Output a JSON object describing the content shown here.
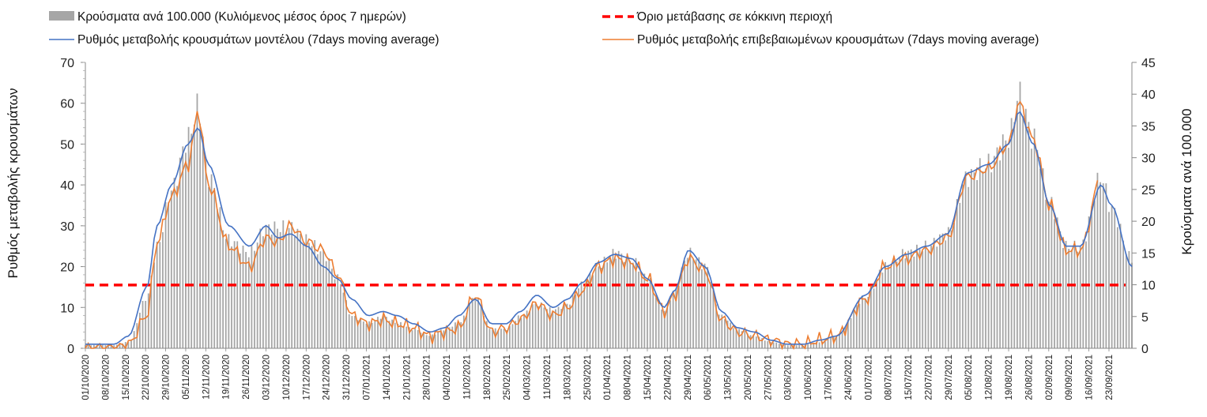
{
  "chart_data": {
    "type": "bar+line",
    "legend": {
      "bars": "Κρούσματα ανά 100.000 (Κυλιόμενος μέσος όρος 7 ημερών)",
      "threshold": "Όριο μετάβασης σε κόκκινη περιοχή",
      "model": "Ρυθμός μεταβολής κρουσμάτων μοντέλου (7days moving average)",
      "confirmed": "Ρυθμός μεταβολής επιβεβαιωμένων κρουσμάτων (7days moving average)"
    },
    "ylabel_left": "Ρυθμός μεταβολής κρουσμάτων",
    "ylabel_right": "Κρούσματα ανά 100.000",
    "ylim_left": [
      0,
      70
    ],
    "yticks_left": [
      0,
      10,
      20,
      30,
      40,
      50,
      60,
      70
    ],
    "ylim_right": [
      0,
      45
    ],
    "yticks_right": [
      0,
      5,
      10,
      15,
      20,
      25,
      30,
      35,
      40,
      45
    ],
    "threshold_value": 15.5,
    "day_count": 366,
    "date_labels": [
      "01/10/2020",
      "08/10/2020",
      "15/10/2020",
      "22/10/2020",
      "29/10/2020",
      "05/11/2020",
      "12/11/2020",
      "19/11/2020",
      "26/11/2020",
      "03/12/2020",
      "10/12/2020",
      "17/12/2020",
      "24/12/2020",
      "31/12/2020",
      "07/01/2021",
      "14/01/2021",
      "21/01/2021",
      "28/01/2021",
      "04/02/2021",
      "11/02/2021",
      "18/02/2021",
      "25/02/2021",
      "04/03/2021",
      "11/03/2021",
      "18/03/2021",
      "25/03/2021",
      "01/04/2021",
      "08/04/2021",
      "15/04/2021",
      "22/04/2021",
      "29/04/2021",
      "06/05/2021",
      "13/05/2021",
      "20/05/2021",
      "27/05/2021",
      "03/06/2021",
      "10/06/2021",
      "17/06/2021",
      "24/06/2021",
      "01/07/2021",
      "08/07/2021",
      "15/07/2021",
      "22/07/2021",
      "29/07/2021",
      "05/08/2021",
      "12/08/2021",
      "19/08/2021",
      "26/08/2021",
      "02/09/2021",
      "09/09/2021",
      "16/09/2021",
      "23/09/2021"
    ],
    "model_keypoints": [
      [
        0,
        1
      ],
      [
        14,
        1
      ],
      [
        21,
        3
      ],
      [
        30,
        15
      ],
      [
        35,
        30
      ],
      [
        42,
        40
      ],
      [
        50,
        50
      ],
      [
        55,
        54
      ],
      [
        60,
        45
      ],
      [
        70,
        30
      ],
      [
        80,
        25
      ],
      [
        88,
        30
      ],
      [
        94,
        27
      ],
      [
        100,
        28
      ],
      [
        108,
        25
      ],
      [
        116,
        20
      ],
      [
        123,
        17
      ],
      [
        130,
        12
      ],
      [
        138,
        8
      ],
      [
        145,
        9
      ],
      [
        152,
        8
      ],
      [
        160,
        6
      ],
      [
        168,
        4
      ],
      [
        175,
        5
      ],
      [
        182,
        8
      ],
      [
        190,
        12
      ],
      [
        198,
        6
      ],
      [
        205,
        6
      ],
      [
        212,
        9
      ],
      [
        220,
        13
      ],
      [
        228,
        10
      ],
      [
        235,
        12
      ],
      [
        242,
        16
      ],
      [
        250,
        21
      ],
      [
        258,
        23
      ],
      [
        266,
        22
      ],
      [
        274,
        17
      ],
      [
        282,
        10
      ],
      [
        287,
        14
      ],
      [
        294,
        24
      ],
      [
        302,
        20
      ],
      [
        310,
        9
      ],
      [
        318,
        5
      ],
      [
        326,
        4
      ],
      [
        334,
        2
      ],
      [
        342,
        1
      ],
      [
        350,
        1
      ],
      [
        358,
        2
      ],
      [
        366,
        3
      ],
      [
        380,
        13
      ],
      [
        390,
        20
      ],
      [
        400,
        23
      ],
      [
        410,
        25
      ],
      [
        420,
        28
      ],
      [
        430,
        43
      ],
      [
        440,
        45
      ],
      [
        450,
        50
      ],
      [
        455,
        58
      ],
      [
        462,
        50
      ],
      [
        470,
        35
      ],
      [
        478,
        25
      ],
      [
        485,
        25
      ],
      [
        495,
        40
      ],
      [
        500,
        35
      ],
      [
        510,
        20
      ]
    ],
    "confirmed_keypoints": [
      [
        0,
        0
      ],
      [
        14,
        0
      ],
      [
        21,
        1
      ],
      [
        30,
        8
      ],
      [
        35,
        26
      ],
      [
        42,
        37
      ],
      [
        50,
        45
      ],
      [
        55,
        58
      ],
      [
        60,
        40
      ],
      [
        70,
        25
      ],
      [
        80,
        20
      ],
      [
        88,
        27
      ],
      [
        94,
        26
      ],
      [
        100,
        30
      ],
      [
        108,
        26
      ],
      [
        116,
        24
      ],
      [
        123,
        18
      ],
      [
        130,
        8
      ],
      [
        138,
        6
      ],
      [
        145,
        7
      ],
      [
        152,
        6
      ],
      [
        160,
        5
      ],
      [
        168,
        3
      ],
      [
        175,
        4
      ],
      [
        182,
        5
      ],
      [
        190,
        13
      ],
      [
        198,
        4
      ],
      [
        205,
        5
      ],
      [
        212,
        7
      ],
      [
        220,
        11
      ],
      [
        228,
        8
      ],
      [
        235,
        10
      ],
      [
        242,
        14
      ],
      [
        250,
        20
      ],
      [
        258,
        22
      ],
      [
        266,
        21
      ],
      [
        274,
        17
      ],
      [
        282,
        9
      ],
      [
        287,
        13
      ],
      [
        294,
        22
      ],
      [
        302,
        19
      ],
      [
        310,
        7
      ],
      [
        318,
        4
      ],
      [
        326,
        3
      ],
      [
        334,
        2
      ],
      [
        342,
        1
      ],
      [
        350,
        1
      ],
      [
        358,
        2
      ],
      [
        366,
        3
      ],
      [
        380,
        12
      ],
      [
        390,
        20
      ],
      [
        400,
        22
      ],
      [
        410,
        24
      ],
      [
        420,
        27
      ],
      [
        430,
        42
      ],
      [
        440,
        44
      ],
      [
        450,
        50
      ],
      [
        455,
        60
      ],
      [
        462,
        51
      ],
      [
        470,
        35
      ],
      [
        478,
        24
      ],
      [
        485,
        24
      ],
      [
        495,
        42
      ],
      [
        500,
        34
      ],
      [
        510,
        23
      ]
    ],
    "bar_keypoints": [
      [
        0,
        0.5
      ],
      [
        14,
        0.5
      ],
      [
        21,
        1
      ],
      [
        30,
        8
      ],
      [
        35,
        16
      ],
      [
        42,
        25
      ],
      [
        50,
        33
      ],
      [
        55,
        38
      ],
      [
        60,
        27
      ],
      [
        70,
        17
      ],
      [
        80,
        15
      ],
      [
        88,
        19
      ],
      [
        94,
        19
      ],
      [
        100,
        19
      ],
      [
        108,
        17
      ],
      [
        116,
        15
      ],
      [
        123,
        11
      ],
      [
        130,
        5
      ],
      [
        138,
        4
      ],
      [
        145,
        5
      ],
      [
        152,
        4
      ],
      [
        160,
        3
      ],
      [
        168,
        2
      ],
      [
        175,
        3
      ],
      [
        182,
        4
      ],
      [
        190,
        8
      ],
      [
        198,
        3
      ],
      [
        205,
        3
      ],
      [
        212,
        5
      ],
      [
        220,
        7
      ],
      [
        228,
        6
      ],
      [
        235,
        7
      ],
      [
        242,
        10
      ],
      [
        250,
        13
      ],
      [
        258,
        15
      ],
      [
        266,
        14
      ],
      [
        274,
        11
      ],
      [
        282,
        6
      ],
      [
        287,
        9
      ],
      [
        294,
        15
      ],
      [
        302,
        13
      ],
      [
        310,
        5
      ],
      [
        318,
        3
      ],
      [
        326,
        2
      ],
      [
        334,
        1
      ],
      [
        342,
        0.5
      ],
      [
        350,
        0.5
      ],
      [
        358,
        1
      ],
      [
        366,
        2
      ],
      [
        380,
        8
      ],
      [
        390,
        13
      ],
      [
        400,
        15
      ],
      [
        410,
        16
      ],
      [
        420,
        18
      ],
      [
        430,
        27
      ],
      [
        440,
        29
      ],
      [
        450,
        33
      ],
      [
        455,
        40
      ],
      [
        462,
        33
      ],
      [
        470,
        23
      ],
      [
        478,
        16
      ],
      [
        485,
        16
      ],
      [
        495,
        27
      ],
      [
        500,
        22
      ],
      [
        510,
        14
      ]
    ]
  }
}
